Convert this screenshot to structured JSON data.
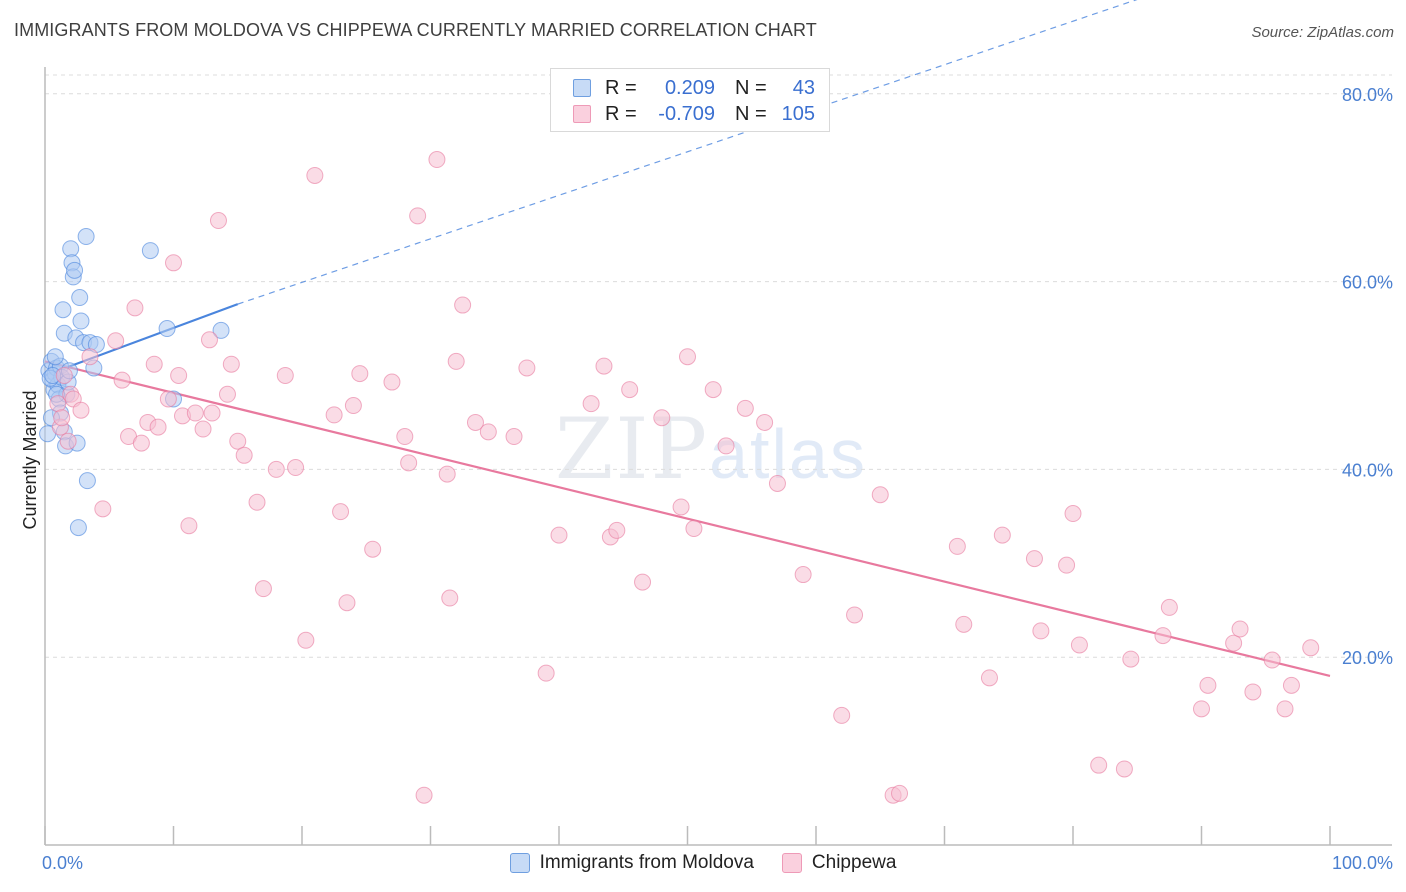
{
  "title": "IMMIGRANTS FROM MOLDOVA VS CHIPPEWA CURRENTLY MARRIED CORRELATION CHART",
  "source": "Source: ZipAtlas.com",
  "watermark": {
    "zip": "ZIP",
    "atlas": "atlas"
  },
  "legend": {
    "rows": [
      {
        "r_label": "R =",
        "r_value": "0.209",
        "n_label": "N =",
        "n_value": "43",
        "color": "#8fb6ea"
      },
      {
        "r_label": "R =",
        "r_value": "-0.709",
        "n_label": "N =",
        "n_value": "105",
        "color": "#f2a7c0"
      }
    ]
  },
  "bottom_legend": [
    {
      "label": "Immigrants from Moldova",
      "color": "#8fb6ea"
    },
    {
      "label": "Chippewa",
      "color": "#f2a7c0"
    }
  ],
  "chart_data": {
    "type": "scatter",
    "title": "IMMIGRANTS FROM MOLDOVA VS CHIPPEWA CURRENTLY MARRIED CORRELATION CHART",
    "xlabel": "",
    "ylabel": "Currently Married",
    "xlim": [
      0,
      100
    ],
    "ylim": [
      0,
      82
    ],
    "x_tick_labels": [
      "0.0%",
      "100.0%"
    ],
    "y_ticks": [
      20,
      40,
      60,
      80
    ],
    "y_tick_labels": [
      "20.0%",
      "40.0%",
      "60.0%",
      "80.0%"
    ],
    "series": [
      {
        "name": "Immigrants from Moldova",
        "color": "#4a85dd",
        "fill": "#aecbf2",
        "points": [
          [
            0.3,
            50.5
          ],
          [
            0.5,
            51.5
          ],
          [
            0.6,
            49.5
          ],
          [
            0.7,
            48.5
          ],
          [
            0.8,
            50.2
          ],
          [
            0.9,
            50.8
          ],
          [
            1.0,
            49.0
          ],
          [
            1.1,
            47.5
          ],
          [
            1.2,
            51.0
          ],
          [
            1.3,
            49.8
          ],
          [
            1.4,
            57.0
          ],
          [
            1.5,
            54.5
          ],
          [
            1.5,
            44.0
          ],
          [
            1.6,
            42.5
          ],
          [
            1.7,
            48.0
          ],
          [
            1.8,
            49.3
          ],
          [
            2.0,
            63.5
          ],
          [
            2.1,
            62.0
          ],
          [
            2.2,
            60.5
          ],
          [
            2.3,
            61.2
          ],
          [
            2.4,
            54.0
          ],
          [
            2.5,
            42.8
          ],
          [
            2.6,
            33.8
          ],
          [
            2.7,
            58.3
          ],
          [
            2.8,
            55.8
          ],
          [
            3.0,
            53.5
          ],
          [
            3.2,
            64.8
          ],
          [
            3.3,
            38.8
          ],
          [
            3.5,
            53.5
          ],
          [
            3.8,
            50.8
          ],
          [
            4.0,
            53.3
          ],
          [
            0.4,
            49.7
          ],
          [
            0.6,
            50.0
          ],
          [
            0.9,
            48.0
          ],
          [
            1.2,
            46.0
          ],
          [
            8.2,
            63.3
          ],
          [
            9.5,
            55.0
          ],
          [
            10.0,
            47.5
          ],
          [
            13.7,
            54.8
          ],
          [
            0.2,
            43.8
          ],
          [
            0.8,
            52.0
          ],
          [
            1.9,
            50.5
          ],
          [
            0.5,
            45.5
          ]
        ],
        "trend": {
          "x": [
            0,
            15
          ],
          "y": [
            50.0,
            57.6
          ],
          "dashed_to": [
            100,
            97.0
          ]
        }
      },
      {
        "name": "Chippewa",
        "color": "#e8799e",
        "fill": "#f6bfd1",
        "points": [
          [
            1.0,
            47.0
          ],
          [
            1.2,
            44.5
          ],
          [
            1.3,
            45.5
          ],
          [
            1.5,
            50.0
          ],
          [
            1.8,
            43.0
          ],
          [
            2.0,
            48.0
          ],
          [
            2.2,
            47.5
          ],
          [
            2.8,
            46.3
          ],
          [
            3.5,
            52.0
          ],
          [
            4.5,
            35.8
          ],
          [
            5.5,
            53.7
          ],
          [
            6.0,
            49.5
          ],
          [
            6.5,
            43.5
          ],
          [
            7.0,
            57.2
          ],
          [
            7.5,
            42.8
          ],
          [
            8.0,
            45.0
          ],
          [
            8.5,
            51.2
          ],
          [
            8.8,
            44.5
          ],
          [
            9.6,
            47.5
          ],
          [
            10.0,
            62.0
          ],
          [
            10.4,
            50.0
          ],
          [
            10.7,
            45.7
          ],
          [
            11.2,
            34.0
          ],
          [
            11.7,
            46.0
          ],
          [
            12.3,
            44.3
          ],
          [
            12.8,
            53.8
          ],
          [
            13.0,
            46.0
          ],
          [
            13.5,
            66.5
          ],
          [
            14.2,
            48.0
          ],
          [
            14.5,
            51.2
          ],
          [
            15.0,
            43.0
          ],
          [
            15.5,
            41.5
          ],
          [
            16.5,
            36.5
          ],
          [
            17.0,
            27.3
          ],
          [
            18.0,
            40.0
          ],
          [
            18.7,
            50.0
          ],
          [
            19.5,
            40.2
          ],
          [
            20.3,
            21.8
          ],
          [
            21.0,
            71.3
          ],
          [
            22.5,
            45.8
          ],
          [
            23.0,
            35.5
          ],
          [
            23.5,
            25.8
          ],
          [
            24.0,
            46.8
          ],
          [
            24.5,
            50.2
          ],
          [
            25.5,
            31.5
          ],
          [
            27.0,
            49.3
          ],
          [
            28.0,
            43.5
          ],
          [
            28.3,
            40.7
          ],
          [
            29.0,
            67.0
          ],
          [
            29.5,
            5.3
          ],
          [
            30.5,
            73.0
          ],
          [
            31.3,
            39.5
          ],
          [
            31.5,
            26.3
          ],
          [
            32.0,
            51.5
          ],
          [
            32.5,
            57.5
          ],
          [
            33.5,
            45.0
          ],
          [
            34.5,
            44.0
          ],
          [
            36.5,
            43.5
          ],
          [
            37.5,
            50.8
          ],
          [
            39.0,
            18.3
          ],
          [
            40.0,
            33.0
          ],
          [
            42.5,
            47.0
          ],
          [
            43.5,
            51.0
          ],
          [
            44.0,
            32.8
          ],
          [
            44.5,
            33.5
          ],
          [
            45.5,
            48.5
          ],
          [
            46.5,
            28.0
          ],
          [
            48.0,
            45.5
          ],
          [
            49.5,
            36.0
          ],
          [
            50.0,
            52.0
          ],
          [
            50.5,
            33.7
          ],
          [
            52.0,
            48.5
          ],
          [
            53.0,
            42.5
          ],
          [
            54.5,
            46.5
          ],
          [
            56.0,
            45.0
          ],
          [
            57.0,
            38.5
          ],
          [
            59.0,
            28.8
          ],
          [
            62.0,
            13.8
          ],
          [
            63.0,
            24.5
          ],
          [
            65.0,
            37.3
          ],
          [
            66.0,
            5.3
          ],
          [
            66.5,
            5.5
          ],
          [
            71.0,
            31.8
          ],
          [
            71.5,
            23.5
          ],
          [
            73.5,
            17.8
          ],
          [
            74.5,
            33.0
          ],
          [
            77.0,
            30.5
          ],
          [
            77.5,
            22.8
          ],
          [
            79.5,
            29.8
          ],
          [
            80.0,
            35.3
          ],
          [
            80.5,
            21.3
          ],
          [
            82.0,
            8.5
          ],
          [
            84.0,
            8.1
          ],
          [
            84.5,
            19.8
          ],
          [
            87.0,
            22.3
          ],
          [
            87.5,
            25.3
          ],
          [
            90.0,
            14.5
          ],
          [
            90.5,
            17.0
          ],
          [
            92.5,
            21.5
          ],
          [
            93.0,
            23.0
          ],
          [
            94.0,
            16.3
          ],
          [
            95.5,
            19.7
          ],
          [
            96.5,
            14.5
          ],
          [
            97.0,
            17.0
          ],
          [
            98.5,
            21.0
          ]
        ],
        "trend": {
          "x": [
            0,
            100
          ],
          "y": [
            51.5,
            18.0
          ]
        }
      }
    ]
  }
}
